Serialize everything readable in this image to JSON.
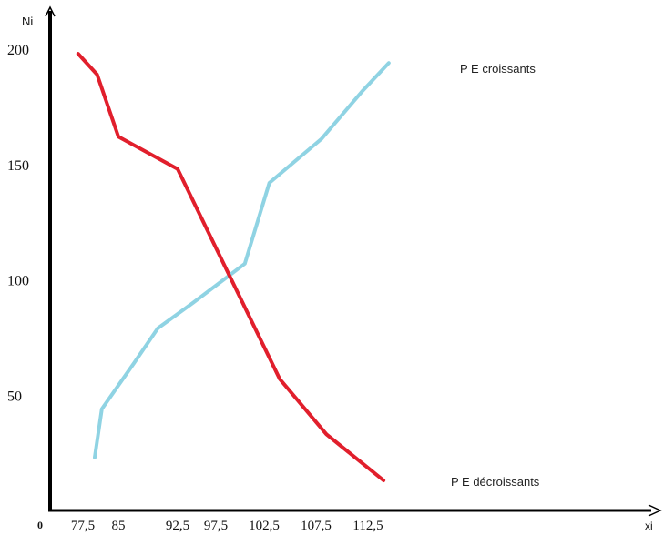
{
  "chart_data": {
    "type": "line",
    "title": "",
    "xlabel": "xi",
    "ylabel": "Ni",
    "origin_label": "0",
    "x_tick_labels": [
      "77,5",
      "85",
      "92,5",
      "97,5",
      "102,5",
      "107,5",
      "112,5"
    ],
    "y_ticks": [
      50,
      100,
      150,
      200
    ],
    "y_tick_labels": [
      "50",
      "100",
      "150",
      "200"
    ],
    "ylim": [
      0,
      205
    ],
    "legend_placement": "inline-right",
    "series": [
      {
        "name": "P E croissants",
        "color": "#8fd3e3",
        "points": [
          {
            "x": 80.0,
            "y": 23
          },
          {
            "x": 81.5,
            "y": 44
          },
          {
            "x": 87.0,
            "y": 64
          },
          {
            "x": 90.0,
            "y": 79
          },
          {
            "x": 94.5,
            "y": 90
          },
          {
            "x": 100.5,
            "y": 107
          },
          {
            "x": 103.0,
            "y": 142
          },
          {
            "x": 108.0,
            "y": 161
          },
          {
            "x": 112.0,
            "y": 182
          },
          {
            "x": 114.5,
            "y": 194
          }
        ]
      },
      {
        "name": "P E décroissants",
        "color": "#e11f2c",
        "points": [
          {
            "x": 76.5,
            "y": 198
          },
          {
            "x": 80.5,
            "y": 189
          },
          {
            "x": 85.0,
            "y": 162
          },
          {
            "x": 92.5,
            "y": 148
          },
          {
            "x": 104.0,
            "y": 57
          },
          {
            "x": 108.5,
            "y": 33
          },
          {
            "x": 114.0,
            "y": 13
          }
        ]
      }
    ]
  }
}
